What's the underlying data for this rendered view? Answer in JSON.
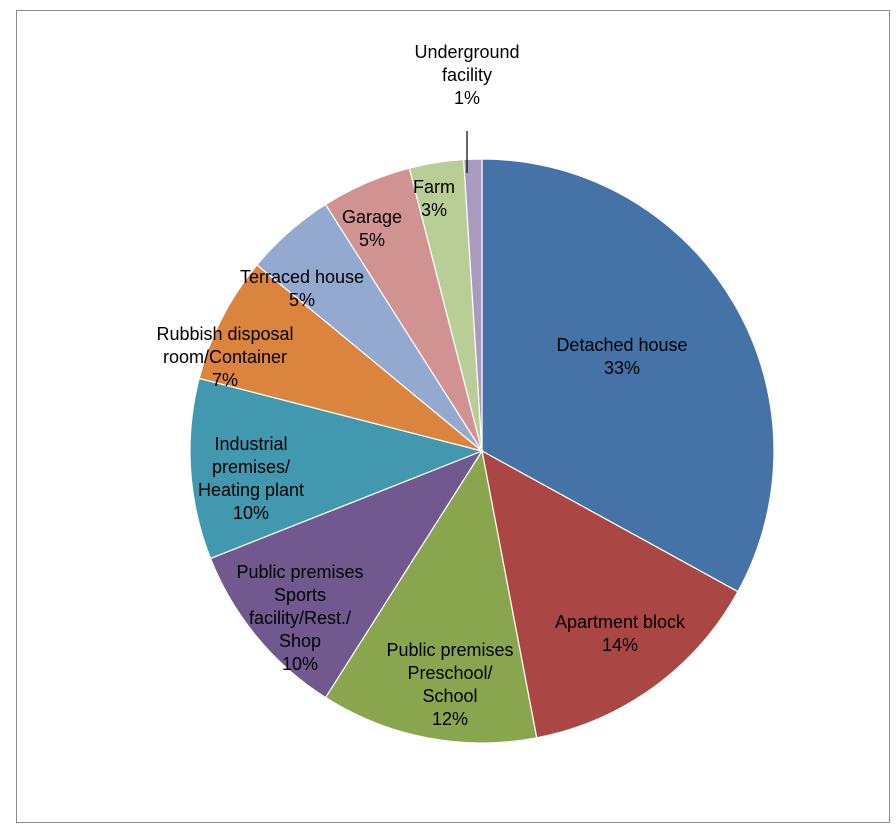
{
  "chart_data": {
    "type": "pie",
    "start_angle_deg": 0,
    "direction": "clockwise",
    "series": [
      {
        "values": [
          33,
          14,
          12,
          10,
          10,
          7,
          5,
          5,
          3,
          1
        ],
        "slices": [
          {
            "label": "Detached house",
            "value": 33,
            "pct_label": "33%",
            "color": "#4572A7"
          },
          {
            "label": "Apartment block",
            "value": 14,
            "pct_label": "14%",
            "color": "#AA4643"
          },
          {
            "label": "Public premises Preschool/ School",
            "value": 12,
            "pct_label": "12%",
            "color": "#89A54E"
          },
          {
            "label": "Public premises Sports facility/Rest./ Shop",
            "value": 10,
            "pct_label": "10%",
            "color": "#71588F"
          },
          {
            "label": "Industrial premises/ Heating plant",
            "value": 10,
            "pct_label": "10%",
            "color": "#4198AF"
          },
          {
            "label": "Rubbish disposal room/Container",
            "value": 7,
            "pct_label": "7%",
            "color": "#DB843D"
          },
          {
            "label": "Terraced house",
            "value": 5,
            "pct_label": "5%",
            "color": "#93A9CF"
          },
          {
            "label": "Garage",
            "value": 5,
            "pct_label": "5%",
            "color": "#D19392"
          },
          {
            "label": "Farm",
            "value": 3,
            "pct_label": "3%",
            "color": "#B9CD96"
          },
          {
            "label": "Underground facility",
            "value": 1,
            "pct_label": "1%",
            "color": "#A99BBD"
          }
        ]
      }
    ]
  }
}
